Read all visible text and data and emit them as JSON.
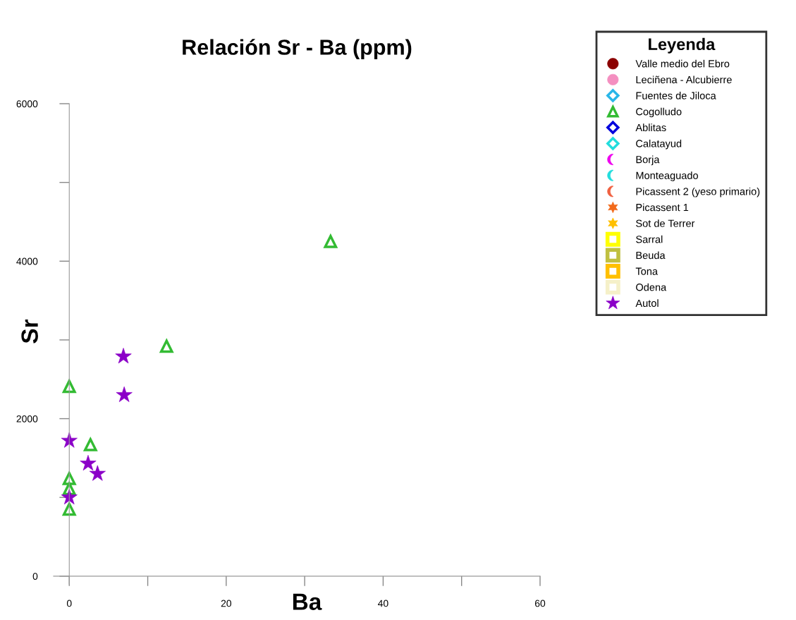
{
  "chart_data": {
    "type": "scatter",
    "title": "Relación Sr - Ba (ppm)",
    "xlabel": "Ba",
    "ylabel": "Sr",
    "legend_title": "Leyenda",
    "legend": "top right",
    "xlim": [
      -2,
      60
    ],
    "ylim": [
      -100,
      6000
    ],
    "xticks": [
      0,
      {
        "value": 10,
        "label": null
      },
      20,
      {
        "value": 30,
        "label": null
      },
      40,
      {
        "value": 50,
        "label": null
      },
      60
    ],
    "yticks": [
      0,
      {
        "value": 1000,
        "label": null
      },
      2000,
      {
        "value": 3000,
        "label": null
      },
      4000,
      {
        "value": 5000,
        "label": null
      },
      6000
    ],
    "series": [
      {
        "name": "Valle medio del Ebro",
        "color": "#8b0000",
        "marker": "circle"
      },
      {
        "name": "Leciñena - Alcubierre",
        "color": "#f48fc0",
        "marker": "circle"
      },
      {
        "name": "Fuentes de Jiloca",
        "color": "#29b6e8",
        "marker": "diamond"
      },
      {
        "name": "Cogolludo",
        "color": "#33bb33",
        "marker": "triangle",
        "x": [
          33.3,
          12.4,
          0,
          2.7,
          0,
          0,
          0
        ],
        "values": [
          4250,
          2920,
          2410,
          1670,
          1240,
          1110,
          850
        ]
      },
      {
        "name": "Ablitas",
        "color": "#0000dd",
        "marker": "diamond"
      },
      {
        "name": "Calatayud",
        "color": "#22dddd",
        "marker": "diamond"
      },
      {
        "name": "Borja",
        "color": "#ee00ee",
        "marker": "crescent"
      },
      {
        "name": "Monteaguado",
        "color": "#22dddd",
        "marker": "crescent"
      },
      {
        "name": "Picassent 2 (yeso primario)",
        "color": "#f06040",
        "marker": "crescent"
      },
      {
        "name": "Picassent 1",
        "color": "#f26a1b",
        "marker": "hexagram"
      },
      {
        "name": "Sot de Terrer",
        "color": "#ffc000",
        "marker": "hexagram"
      },
      {
        "name": "Sarral",
        "color": "#ffff00",
        "marker": "square"
      },
      {
        "name": "Beuda",
        "color": "#c0c040",
        "marker": "square"
      },
      {
        "name": "Tona",
        "color": "#ffc000",
        "marker": "square"
      },
      {
        "name": "Odena",
        "color": "#f5f0c8",
        "marker": "square"
      },
      {
        "name": "Autol",
        "color": "#8b00c8",
        "marker": "star",
        "x": [
          6.9,
          7.0,
          0,
          2.4,
          3.6,
          0
        ],
        "values": [
          2790,
          2300,
          1720,
          1430,
          1300,
          1000
        ]
      }
    ]
  }
}
